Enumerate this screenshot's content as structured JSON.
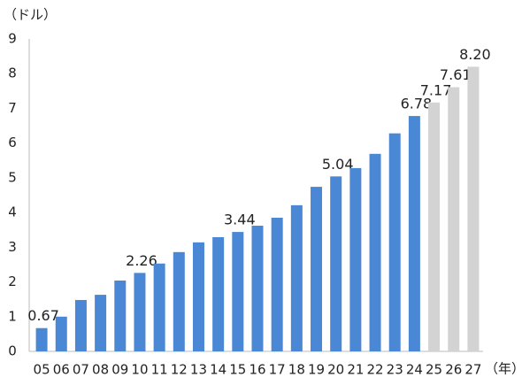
{
  "chart_data": {
    "type": "bar",
    "y_label": "（ドル）",
    "x_label": "（年）",
    "categories": [
      "05",
      "06",
      "07",
      "08",
      "09",
      "10",
      "11",
      "12",
      "13",
      "14",
      "15",
      "16",
      "17",
      "18",
      "19",
      "20",
      "21",
      "22",
      "23",
      "24",
      "25",
      "26",
      "27"
    ],
    "values": [
      0.67,
      1.0,
      1.48,
      1.63,
      2.04,
      2.26,
      2.53,
      2.86,
      3.14,
      3.29,
      3.44,
      3.62,
      3.85,
      4.21,
      4.74,
      5.04,
      5.28,
      5.69,
      6.28,
      6.78,
      7.17,
      7.61,
      8.2
    ],
    "value_labels": [
      "0.67",
      null,
      null,
      null,
      null,
      "2.26",
      null,
      null,
      null,
      null,
      "3.44",
      null,
      null,
      null,
      null,
      "5.04",
      null,
      null,
      null,
      "6.78",
      "7.17",
      "7.61",
      "8.20"
    ],
    "colors": [
      "#4a88d6",
      "#4a88d6",
      "#4a88d6",
      "#4a88d6",
      "#4a88d6",
      "#4a88d6",
      "#4a88d6",
      "#4a88d6",
      "#4a88d6",
      "#4a88d6",
      "#4a88d6",
      "#4a88d6",
      "#4a88d6",
      "#4a88d6",
      "#4a88d6",
      "#4a88d6",
      "#4a88d6",
      "#4a88d6",
      "#4a88d6",
      "#4a88d6",
      "#d3d3d3",
      "#d3d3d3",
      "#d3d3d3"
    ],
    "ylim": [
      0,
      9
    ],
    "yticks": [
      0,
      1,
      2,
      3,
      4,
      5,
      6,
      7,
      8,
      9
    ],
    "grid": false
  }
}
